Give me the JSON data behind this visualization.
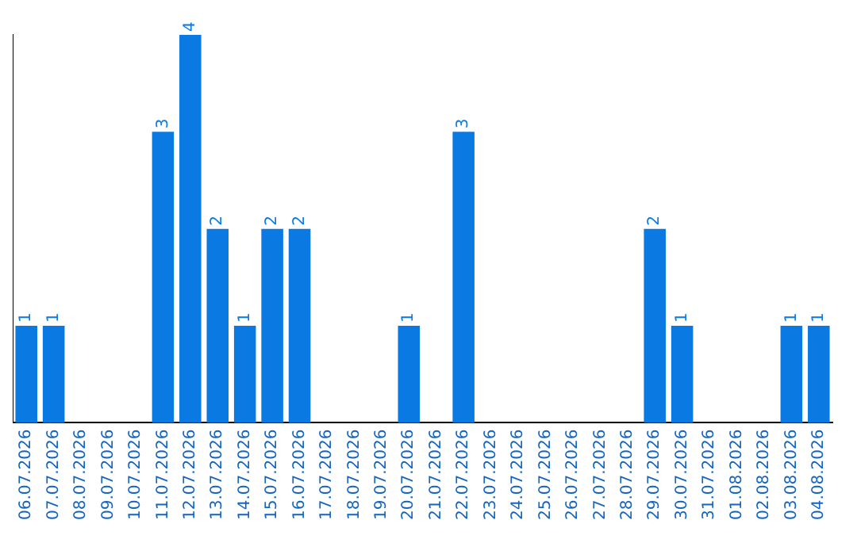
{
  "chart_data": {
    "type": "bar",
    "categories": [
      "06.07.2026",
      "07.07.2026",
      "08.07.2026",
      "09.07.2026",
      "10.07.2026",
      "11.07.2026",
      "12.07.2026",
      "13.07.2026",
      "14.07.2026",
      "15.07.2026",
      "16.07.2026",
      "17.07.2026",
      "18.07.2026",
      "19.07.2026",
      "20.07.2026",
      "21.07.2026",
      "22.07.2026",
      "23.07.2026",
      "24.07.2026",
      "25.07.2026",
      "26.07.2026",
      "27.07.2026",
      "28.07.2026",
      "29.07.2026",
      "30.07.2026",
      "31.07.2026",
      "01.08.2026",
      "02.08.2026",
      "03.08.2026",
      "04.08.2026"
    ],
    "values": [
      1,
      1,
      0,
      0,
      0,
      3,
      4,
      2,
      1,
      2,
      2,
      0,
      0,
      0,
      1,
      0,
      3,
      0,
      0,
      0,
      0,
      0,
      0,
      2,
      1,
      0,
      0,
      0,
      1,
      1
    ],
    "value_labels": [
      "1",
      "1",
      null,
      null,
      null,
      "3",
      "4",
      "2",
      "1",
      "2",
      "2",
      null,
      null,
      null,
      "1",
      null,
      "3",
      null,
      null,
      null,
      null,
      null,
      null,
      "2",
      "1",
      null,
      null,
      null,
      "1",
      "1"
    ],
    "color": "#0a7ae2",
    "grid": false,
    "legend": false,
    "tick_labels": "x"
  }
}
